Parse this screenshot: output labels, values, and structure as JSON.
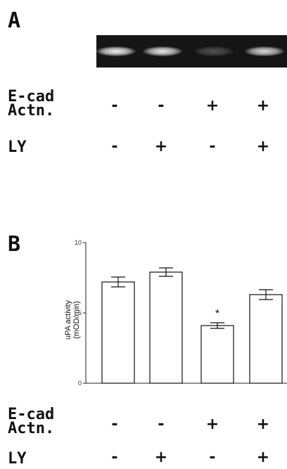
{
  "panel_a": {
    "letter": "A",
    "gel_bands": [
      {
        "lane": 1,
        "intensity": 0.95
      },
      {
        "lane": 2,
        "intensity": 0.92
      },
      {
        "lane": 3,
        "intensity": 0.25
      },
      {
        "lane": 4,
        "intensity": 0.85
      }
    ],
    "conditions": [
      {
        "label_lines": [
          "E-cad",
          "Actn."
        ],
        "signs": [
          "-",
          "-",
          "+",
          "+"
        ]
      },
      {
        "label_lines": [
          "LY"
        ],
        "signs": [
          "-",
          "+",
          "-",
          "+"
        ]
      }
    ]
  },
  "panel_b": {
    "letter": "B",
    "conditions": [
      {
        "label_lines": [
          "E-cad",
          "Actn."
        ],
        "signs": [
          "-",
          "-",
          "+",
          "+"
        ]
      },
      {
        "label_lines": [
          "LY"
        ],
        "signs": [
          "-",
          "+",
          "-",
          "+"
        ]
      }
    ]
  },
  "chart_data": {
    "type": "bar",
    "title": "",
    "xlabel": "",
    "ylabel_lines": [
      "uPA activity",
      "(mOD/min)"
    ],
    "categories": [
      "1",
      "2",
      "3",
      "4"
    ],
    "values": [
      7.2,
      7.9,
      4.1,
      6.3
    ],
    "errors": [
      0.35,
      0.3,
      0.2,
      0.35
    ],
    "significance": [
      "",
      "",
      "*",
      ""
    ],
    "ylim": [
      0,
      10
    ],
    "yticks": [
      0,
      5,
      10
    ],
    "bar_fill": "#ffffff",
    "bar_stroke": "#111111",
    "grid": false,
    "legend": "none"
  }
}
